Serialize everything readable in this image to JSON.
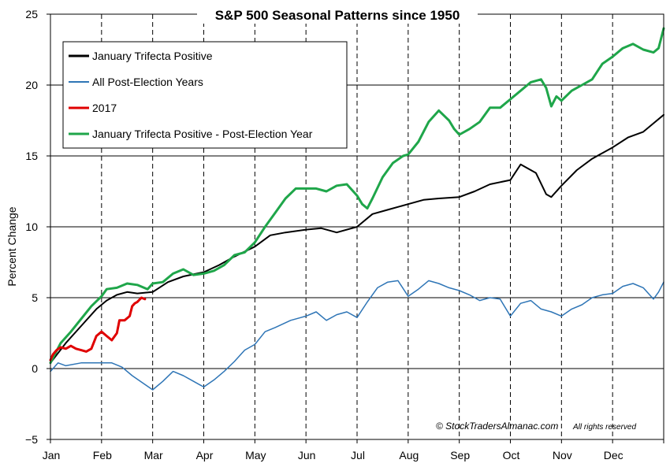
{
  "chart_data": {
    "type": "line",
    "title": "S&P 500 Seasonal Patterns since 1950",
    "ylabel": "Percent Change",
    "xlabel": "",
    "ylim": [
      -5,
      25
    ],
    "yticks": [
      25,
      20,
      15,
      10,
      5,
      0,
      -5
    ],
    "ytick_labels": [
      "25",
      "20",
      "15",
      "10",
      "5",
      "0",
      "−5"
    ],
    "xlim": [
      0,
      12
    ],
    "months": [
      "Jan",
      "Feb",
      "Mar",
      "Apr",
      "May",
      "Jun",
      "Jul",
      "Aug",
      "Sep",
      "Oct",
      "Nov",
      "Dec"
    ],
    "grid": true,
    "legend_position": "top-left",
    "copyright": "© StockTradersAlmanac.com",
    "copyright_note": "All rights reserved",
    "series": [
      {
        "name": "January Trifecta Positive",
        "color": "#000000",
        "points": [
          [
            0,
            0.4
          ],
          [
            0.3,
            1.8
          ],
          [
            0.6,
            3.0
          ],
          [
            0.9,
            4.2
          ],
          [
            1.1,
            4.8
          ],
          [
            1.3,
            5.2
          ],
          [
            1.5,
            5.4
          ],
          [
            1.7,
            5.3
          ],
          [
            2.0,
            5.4
          ],
          [
            2.3,
            6.1
          ],
          [
            2.6,
            6.5
          ],
          [
            3.0,
            6.8
          ],
          [
            3.3,
            7.3
          ],
          [
            3.6,
            7.9
          ],
          [
            4.0,
            8.6
          ],
          [
            4.3,
            9.4
          ],
          [
            4.6,
            9.6
          ],
          [
            5.0,
            9.8
          ],
          [
            5.3,
            9.9
          ],
          [
            5.6,
            9.6
          ],
          [
            6.0,
            10.0
          ],
          [
            6.3,
            10.9
          ],
          [
            6.6,
            11.2
          ],
          [
            7.0,
            11.6
          ],
          [
            7.3,
            11.9
          ],
          [
            7.6,
            12.0
          ],
          [
            8.0,
            12.1
          ],
          [
            8.3,
            12.5
          ],
          [
            8.6,
            13.0
          ],
          [
            9.0,
            13.3
          ],
          [
            9.2,
            14.4
          ],
          [
            9.5,
            13.8
          ],
          [
            9.7,
            12.3
          ],
          [
            9.8,
            12.1
          ],
          [
            10.0,
            12.9
          ],
          [
            10.3,
            14.0
          ],
          [
            10.6,
            14.8
          ],
          [
            11.0,
            15.6
          ],
          [
            11.3,
            16.3
          ],
          [
            11.6,
            16.7
          ],
          [
            11.8,
            17.3
          ],
          [
            12.0,
            17.9
          ]
        ]
      },
      {
        "name": "All Post-Election Years",
        "color": "#2E75B6",
        "points": [
          [
            0,
            -0.2
          ],
          [
            0.15,
            0.4
          ],
          [
            0.3,
            0.2
          ],
          [
            0.6,
            0.4
          ],
          [
            0.9,
            0.4
          ],
          [
            1.2,
            0.4
          ],
          [
            1.4,
            0.1
          ],
          [
            1.6,
            -0.5
          ],
          [
            1.8,
            -1.0
          ],
          [
            2.0,
            -1.5
          ],
          [
            2.2,
            -0.9
          ],
          [
            2.4,
            -0.2
          ],
          [
            2.6,
            -0.5
          ],
          [
            2.8,
            -0.9
          ],
          [
            3.0,
            -1.3
          ],
          [
            3.2,
            -0.8
          ],
          [
            3.4,
            -0.2
          ],
          [
            3.6,
            0.5
          ],
          [
            3.8,
            1.3
          ],
          [
            4.0,
            1.7
          ],
          [
            4.2,
            2.6
          ],
          [
            4.4,
            2.9
          ],
          [
            4.7,
            3.4
          ],
          [
            5.0,
            3.7
          ],
          [
            5.2,
            4.0
          ],
          [
            5.4,
            3.4
          ],
          [
            5.6,
            3.8
          ],
          [
            5.8,
            4.0
          ],
          [
            6.0,
            3.6
          ],
          [
            6.2,
            4.7
          ],
          [
            6.4,
            5.7
          ],
          [
            6.6,
            6.1
          ],
          [
            6.8,
            6.2
          ],
          [
            7.0,
            5.1
          ],
          [
            7.2,
            5.6
          ],
          [
            7.4,
            6.2
          ],
          [
            7.6,
            6.0
          ],
          [
            7.8,
            5.7
          ],
          [
            8.0,
            5.5
          ],
          [
            8.2,
            5.2
          ],
          [
            8.4,
            4.8
          ],
          [
            8.6,
            5.0
          ],
          [
            8.8,
            4.9
          ],
          [
            9.0,
            3.7
          ],
          [
            9.2,
            4.6
          ],
          [
            9.4,
            4.8
          ],
          [
            9.6,
            4.2
          ],
          [
            9.8,
            4.0
          ],
          [
            10.0,
            3.7
          ],
          [
            10.2,
            4.2
          ],
          [
            10.4,
            4.5
          ],
          [
            10.6,
            5.0
          ],
          [
            10.8,
            5.2
          ],
          [
            11.0,
            5.3
          ],
          [
            11.2,
            5.8
          ],
          [
            11.4,
            6.0
          ],
          [
            11.6,
            5.7
          ],
          [
            11.8,
            4.9
          ],
          [
            11.9,
            5.4
          ],
          [
            12.0,
            6.1
          ]
        ]
      },
      {
        "name": "2017",
        "color": "#E00000",
        "points": [
          [
            0,
            0.6
          ],
          [
            0.05,
            1.0
          ],
          [
            0.12,
            1.3
          ],
          [
            0.2,
            1.5
          ],
          [
            0.3,
            1.4
          ],
          [
            0.4,
            1.6
          ],
          [
            0.5,
            1.4
          ],
          [
            0.6,
            1.3
          ],
          [
            0.7,
            1.2
          ],
          [
            0.8,
            1.4
          ],
          [
            0.9,
            2.3
          ],
          [
            1.0,
            2.6
          ],
          [
            1.1,
            2.3
          ],
          [
            1.2,
            2.0
          ],
          [
            1.3,
            2.5
          ],
          [
            1.35,
            3.4
          ],
          [
            1.45,
            3.4
          ],
          [
            1.55,
            3.7
          ],
          [
            1.6,
            4.4
          ],
          [
            1.65,
            4.6
          ],
          [
            1.7,
            4.7
          ],
          [
            1.78,
            5.0
          ],
          [
            1.85,
            4.9
          ]
        ]
      },
      {
        "name": "January Trifecta Positive - Post-Election Year",
        "color": "#1FA64A",
        "points": [
          [
            0,
            0.4
          ],
          [
            0.2,
            1.8
          ],
          [
            0.4,
            2.6
          ],
          [
            0.6,
            3.5
          ],
          [
            0.8,
            4.4
          ],
          [
            1.0,
            5.1
          ],
          [
            1.1,
            5.6
          ],
          [
            1.3,
            5.7
          ],
          [
            1.5,
            6.0
          ],
          [
            1.7,
            5.9
          ],
          [
            1.9,
            5.6
          ],
          [
            2.0,
            6.0
          ],
          [
            2.2,
            6.1
          ],
          [
            2.4,
            6.7
          ],
          [
            2.6,
            7.0
          ],
          [
            2.8,
            6.6
          ],
          [
            3.0,
            6.7
          ],
          [
            3.2,
            6.9
          ],
          [
            3.4,
            7.3
          ],
          [
            3.6,
            8.0
          ],
          [
            3.8,
            8.2
          ],
          [
            4.0,
            8.9
          ],
          [
            4.2,
            10.0
          ],
          [
            4.4,
            11.0
          ],
          [
            4.6,
            12.0
          ],
          [
            4.8,
            12.7
          ],
          [
            5.0,
            12.7
          ],
          [
            5.2,
            12.7
          ],
          [
            5.4,
            12.5
          ],
          [
            5.6,
            12.9
          ],
          [
            5.8,
            13.0
          ],
          [
            6.0,
            12.2
          ],
          [
            6.1,
            11.6
          ],
          [
            6.2,
            11.3
          ],
          [
            6.3,
            12.0
          ],
          [
            6.5,
            13.5
          ],
          [
            6.7,
            14.5
          ],
          [
            6.9,
            15.0
          ],
          [
            7.0,
            15.1
          ],
          [
            7.2,
            16.0
          ],
          [
            7.4,
            17.4
          ],
          [
            7.6,
            18.2
          ],
          [
            7.8,
            17.5
          ],
          [
            7.9,
            16.9
          ],
          [
            8.0,
            16.5
          ],
          [
            8.2,
            16.9
          ],
          [
            8.4,
            17.4
          ],
          [
            8.6,
            18.4
          ],
          [
            8.8,
            18.4
          ],
          [
            9.0,
            19.0
          ],
          [
            9.2,
            19.6
          ],
          [
            9.4,
            20.2
          ],
          [
            9.6,
            20.4
          ],
          [
            9.7,
            19.8
          ],
          [
            9.8,
            18.5
          ],
          [
            9.9,
            19.2
          ],
          [
            10.0,
            18.9
          ],
          [
            10.2,
            19.6
          ],
          [
            10.4,
            20.0
          ],
          [
            10.6,
            20.4
          ],
          [
            10.8,
            21.5
          ],
          [
            11.0,
            22.0
          ],
          [
            11.2,
            22.6
          ],
          [
            11.4,
            22.9
          ],
          [
            11.6,
            22.5
          ],
          [
            11.8,
            22.3
          ],
          [
            11.9,
            22.6
          ],
          [
            12.0,
            24.0
          ]
        ]
      }
    ]
  }
}
